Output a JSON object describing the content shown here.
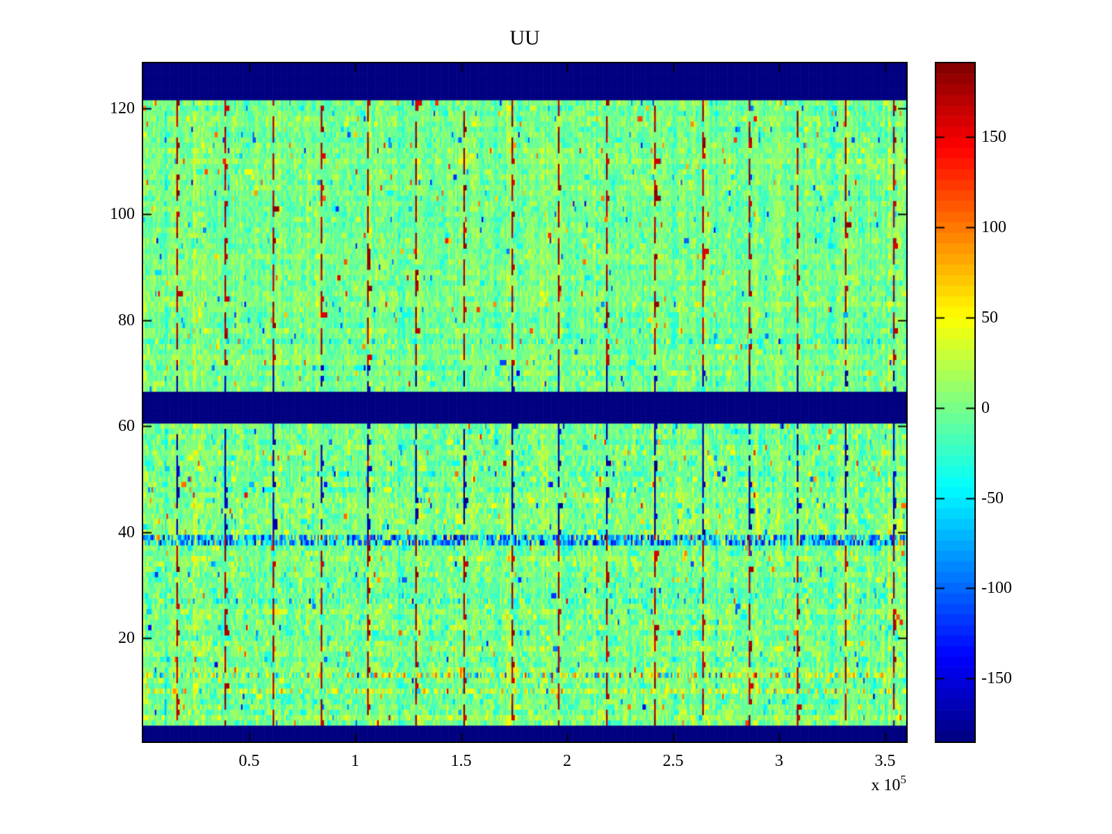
{
  "chart_data": {
    "type": "heatmap",
    "title": "UU",
    "colormap": "jet",
    "background_color": "#ffffff",
    "axis_color": "#000000",
    "x_axis": {
      "range": [
        0,
        360000
      ],
      "tick_values": [
        50000,
        100000,
        150000,
        200000,
        250000,
        300000,
        350000
      ],
      "tick_labels": [
        "0.5",
        "1",
        "1.5",
        "2",
        "2.5",
        "3",
        "3.5"
      ],
      "exponent_prefix": "x 10",
      "exponent": "5"
    },
    "y_axis": {
      "range": [
        0.5,
        128.5
      ],
      "tick_values": [
        20,
        40,
        60,
        80,
        100,
        120
      ],
      "tick_labels": [
        "20",
        "40",
        "60",
        "80",
        "100",
        "120"
      ]
    },
    "colorbar": {
      "range": [
        -185,
        191
      ],
      "levels": 64,
      "tick_values": [
        150,
        100,
        50,
        0,
        -50,
        -100,
        -150
      ],
      "tick_labels": [
        "150",
        "100",
        "50",
        "0",
        "-50",
        "-100",
        "-150"
      ]
    },
    "grid": {
      "rows": 128,
      "cols": 460,
      "seed": 7
    },
    "blank_bands_y": [
      [
        122,
        129
      ],
      [
        61,
        66
      ],
      [
        0,
        3
      ]
    ],
    "vertical_lines": {
      "x_positions": [
        16000,
        38500,
        61000,
        83500,
        106000,
        128500,
        151000,
        173500,
        196000,
        218500,
        241000,
        263500,
        286000,
        308500,
        331000,
        353500
      ],
      "blue_y_ranges": [
        [
          40,
          60
        ],
        [
          67,
          71
        ]
      ],
      "red_dash_on": 5,
      "red_dash_period": 7,
      "blue_solid_prob": 0.85
    },
    "anomalous_rows": [
      {
        "rows": [
          38,
          39
        ],
        "bias": -55,
        "spread": 60
      },
      {
        "rows": [
          13
        ],
        "bias": 15,
        "spread": 50
      },
      {
        "rows": [
          27
        ],
        "bias": -8,
        "spread": 30
      },
      {
        "rows": [
          10
        ],
        "bias": 18,
        "spread": 35
      },
      {
        "rows": [
          76
        ],
        "bias": -14,
        "spread": 24
      }
    ],
    "noise": {
      "mean": 0,
      "std": 14,
      "col_streak_std": 9,
      "row_offset_std": 4,
      "lower_half_gain": 1.25,
      "run_prob": 0.18,
      "outlier_prob": 0.015,
      "outlier_min": 50,
      "outlier_extra": 80
    }
  }
}
